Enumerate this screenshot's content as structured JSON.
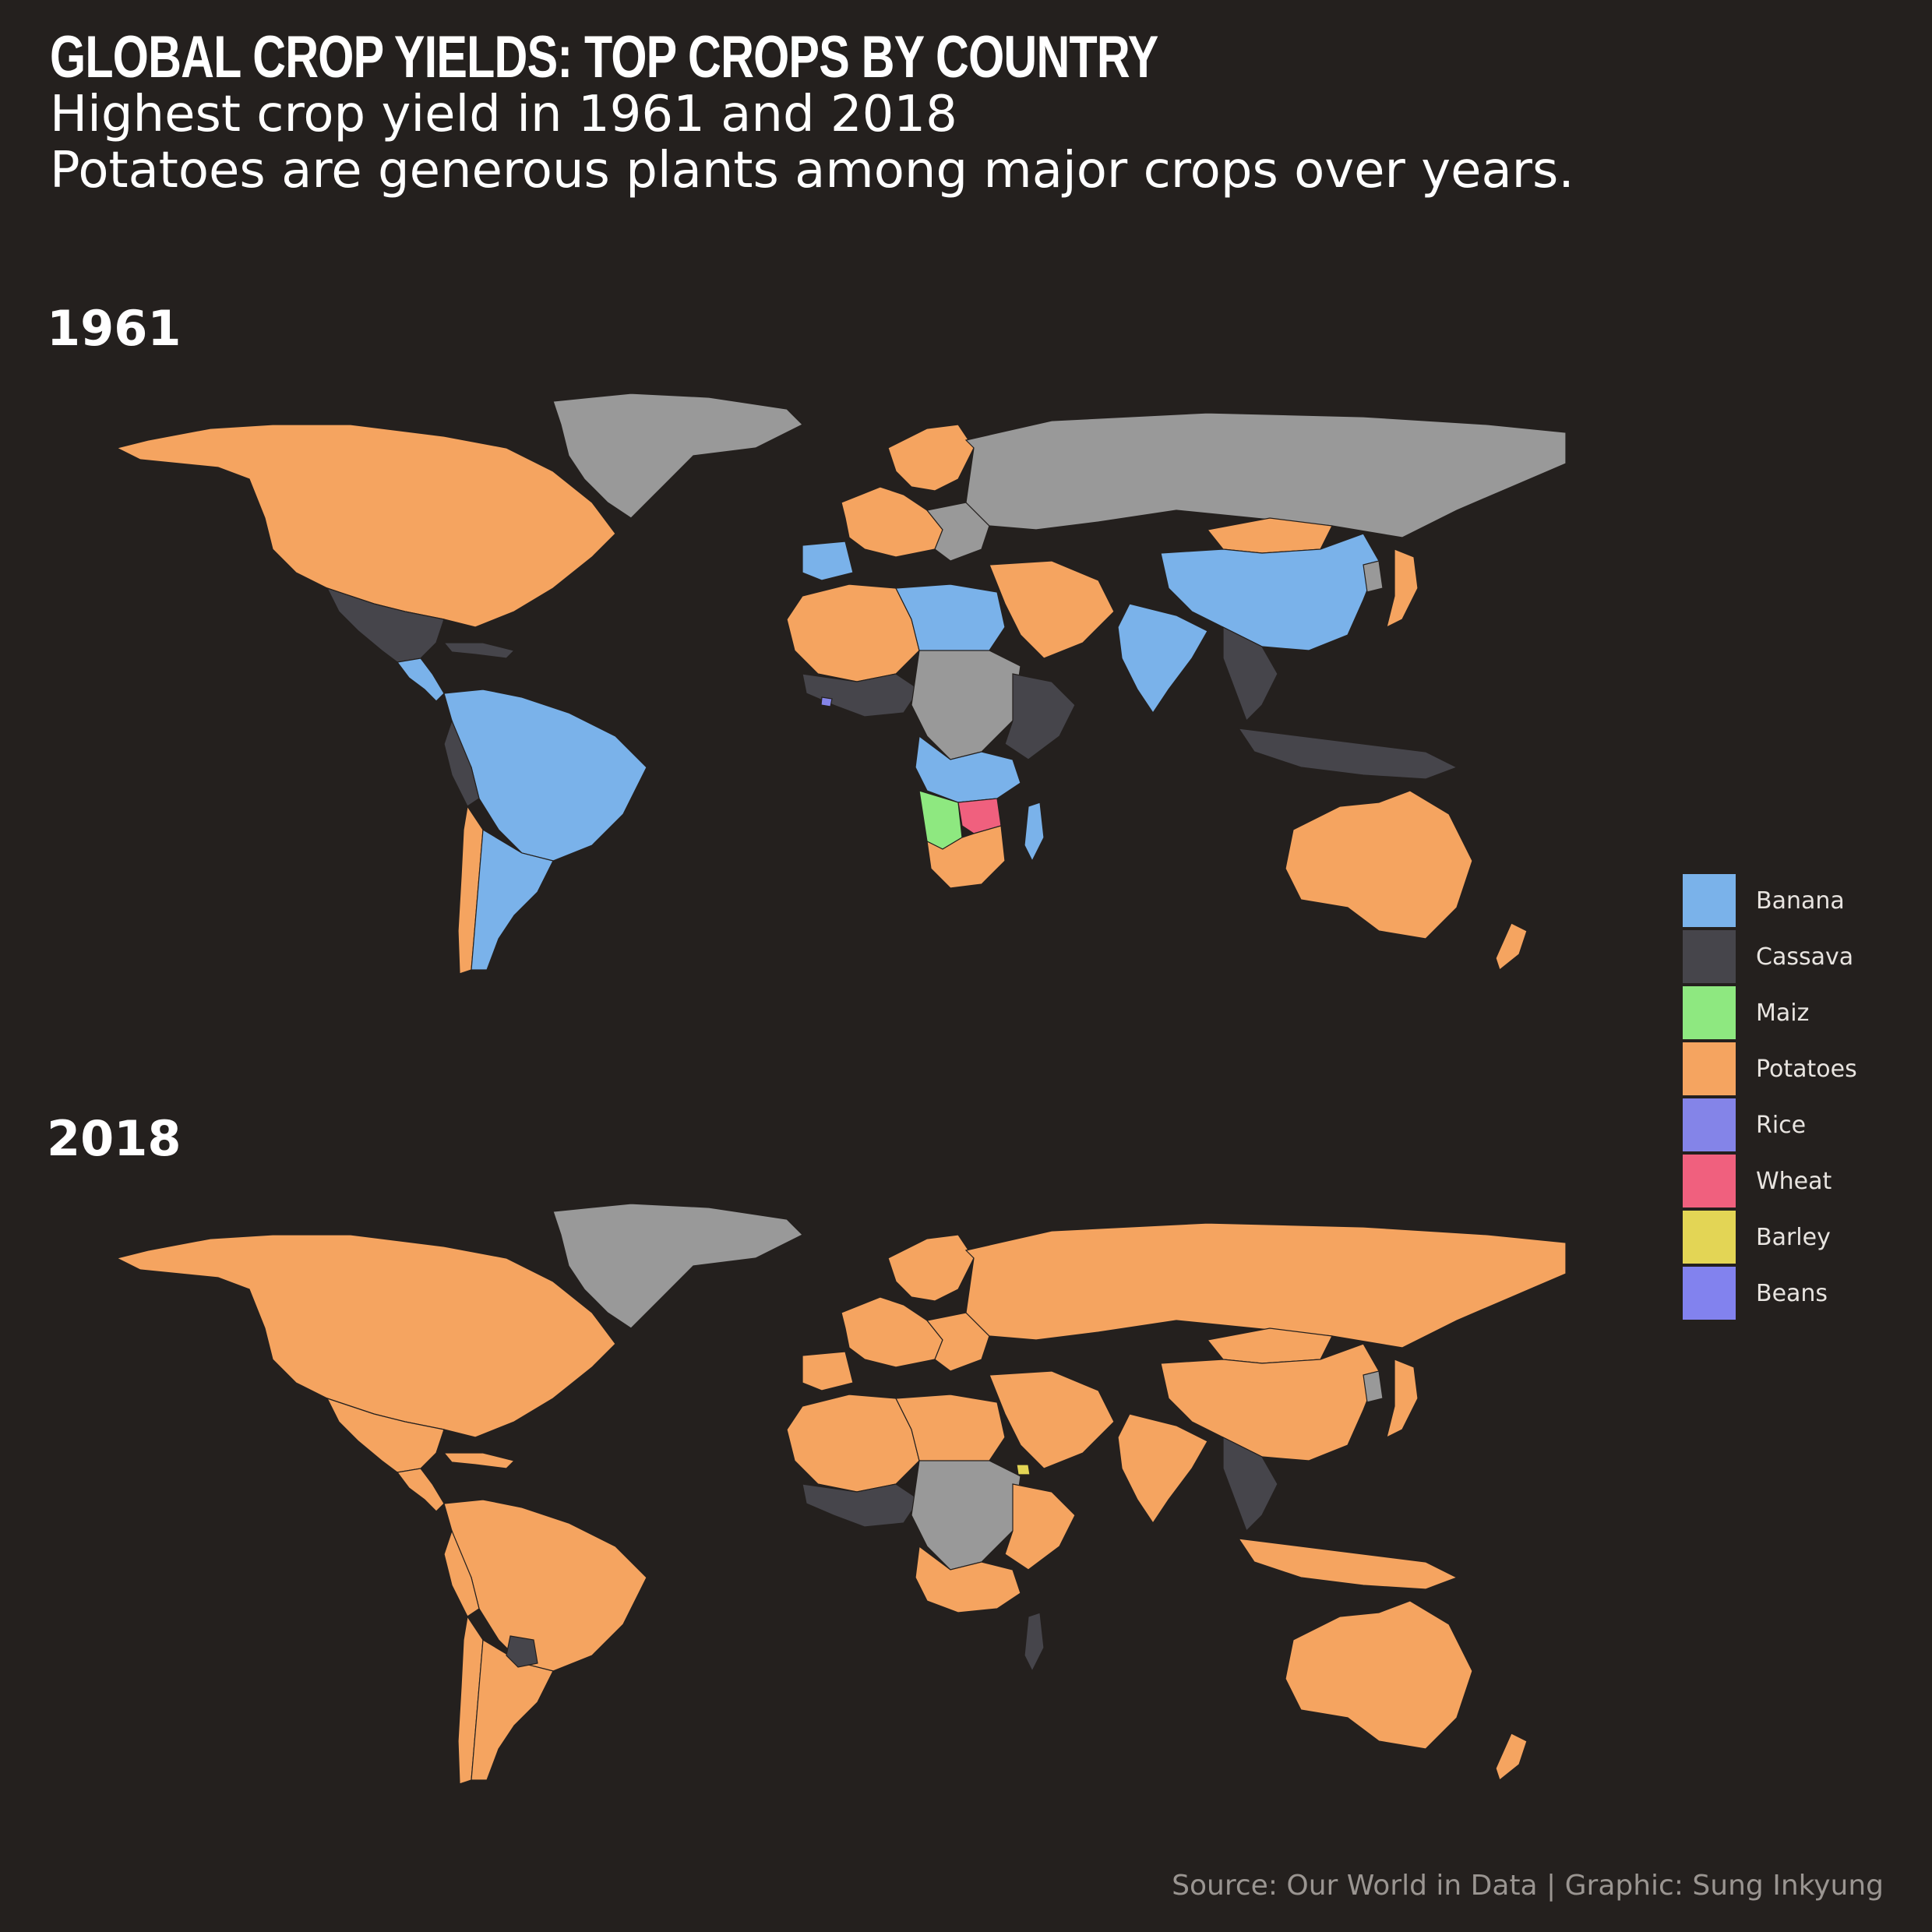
{
  "header": {
    "title": "GLOBAL CROP YIELDS: TOP CROPS BY COUNTRY",
    "subtitle_line1": "Highest crop yield in 1961 and 2018",
    "subtitle_line2": "Potatoes are generous plants among major crops over years."
  },
  "maps": [
    {
      "year_label": "1961",
      "regions": {
        "north_america": "Potatoes",
        "greenland": "No data",
        "mexico": "Cassava",
        "central_america": "Banana",
        "caribbean": "Cassava",
        "south_america_north": "Banana",
        "andes_west": "Cassava",
        "chile": "Potatoes",
        "argentina": "Banana",
        "iberia": "Banana",
        "western_europe": "Potatoes",
        "eastern_europe": "No data",
        "scandinavia": "Potatoes",
        "russia": "No data",
        "mongolia": "Potatoes",
        "china": "Banana",
        "japan": "Potatoes",
        "korea": "No data",
        "india": "Banana",
        "southeast_asia": "Cassava",
        "indonesia": "Cassava",
        "australia": "Potatoes",
        "new_zealand": "Potatoes",
        "north_africa": "Potatoes",
        "libya_egypt": "Banana",
        "middle_east": "Potatoes",
        "west_africa": "Cassava",
        "central_africa": "No data",
        "east_africa": "Cassava",
        "angola_zambia": "Banana",
        "namibia": "Maiz",
        "botswana": "Wheat",
        "south_africa": "Potatoes",
        "madagascar": "Banana",
        "liberia": "Rice"
      }
    },
    {
      "year_label": "2018",
      "regions": {
        "north_america": "Potatoes",
        "greenland": "No data",
        "mexico": "Potatoes",
        "central_america": "Potatoes",
        "caribbean": "Potatoes",
        "south_america_north": "Potatoes",
        "andes_west": "Potatoes",
        "chile": "Potatoes",
        "argentina": "Potatoes",
        "paraguay": "Cassava",
        "iberia": "Potatoes",
        "western_europe": "Potatoes",
        "eastern_europe": "Potatoes",
        "scandinavia": "Potatoes",
        "russia": "Potatoes",
        "mongolia": "Potatoes",
        "china": "Potatoes",
        "japan": "Potatoes",
        "korea": "No data",
        "india": "Potatoes",
        "southeast_asia": "Cassava",
        "indonesia": "Potatoes",
        "australia": "Potatoes",
        "new_zealand": "Potatoes",
        "north_africa": "Potatoes",
        "libya_egypt": "Potatoes",
        "middle_east": "Potatoes",
        "west_africa": "Cassava",
        "central_africa": "No data",
        "east_africa": "Potatoes",
        "angola_zambia": "Potatoes",
        "madagascar": "Cassava",
        "eritrea": "Barley"
      }
    }
  ],
  "legend": {
    "items": [
      {
        "label": "Banana",
        "color": "#7ab2ea"
      },
      {
        "label": "Cassava",
        "color": "#46454b"
      },
      {
        "label": "Maiz",
        "color": "#8ee880"
      },
      {
        "label": "Potatoes",
        "color": "#f5a460"
      },
      {
        "label": "Rice",
        "color": "#8484e8"
      },
      {
        "label": "Wheat",
        "color": "#f0607e"
      },
      {
        "label": "Barley",
        "color": "#e3d555"
      },
      {
        "label": "Beans",
        "color": "#8282ee"
      }
    ],
    "no_data_color": "#999999"
  },
  "footer": {
    "source": "Source: Our World in Data | Graphic: Sung Inkyung"
  }
}
